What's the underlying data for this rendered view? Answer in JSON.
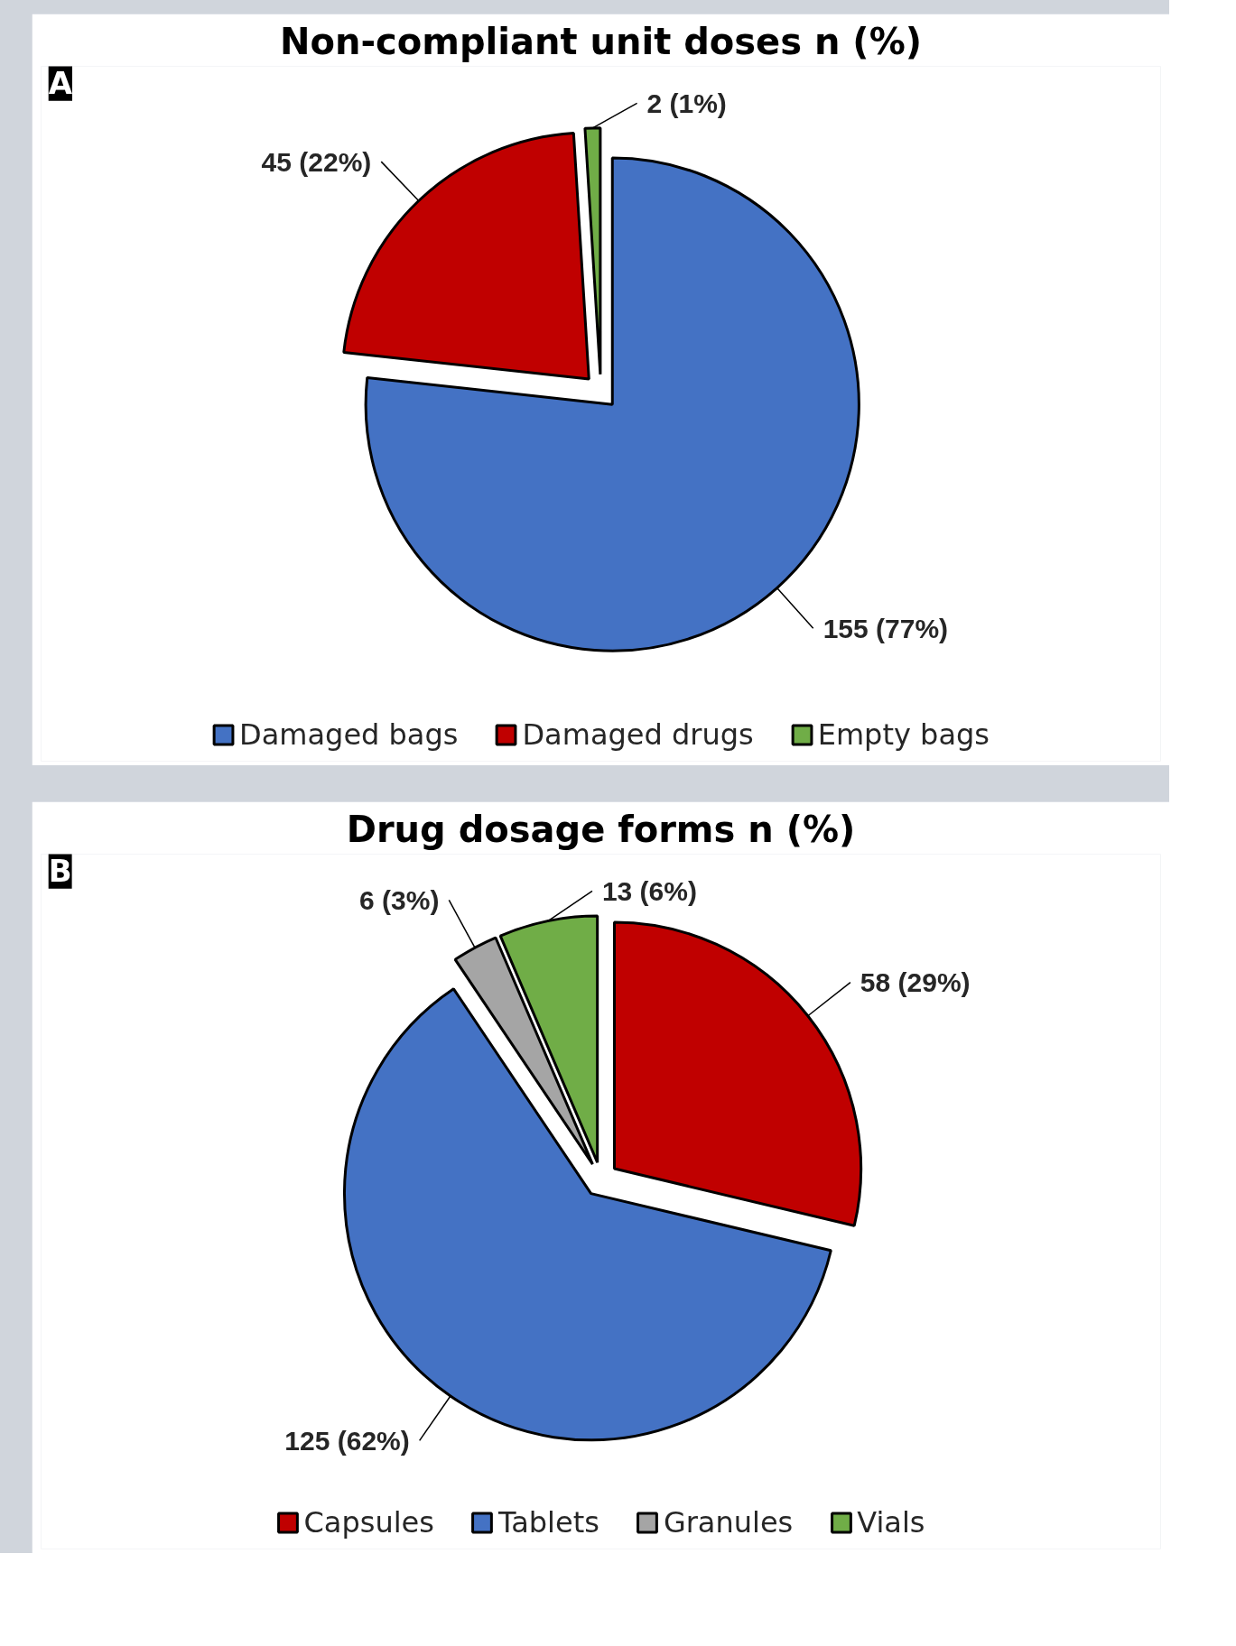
{
  "chart_data": [
    {
      "type": "pie",
      "title": "Non-compliant unit doses n (%)",
      "annotations": [
        "A"
      ],
      "categories": [
        "Damaged bags",
        "Damaged drugs",
        "Empty bags"
      ],
      "values": [
        155,
        45,
        2
      ],
      "colors": [
        "#4472c4",
        "#c00000",
        "#70ad47"
      ],
      "value_labels": [
        "155 (77%)",
        "45 (22%)",
        "2 (1%)"
      ],
      "legend": "bottom"
    },
    {
      "type": "pie",
      "title": "Drug dosage forms n (%)",
      "annotations": [
        "B"
      ],
      "categories": [
        "Capsules",
        "Tablets",
        "Granules",
        "Vials"
      ],
      "values": [
        58,
        125,
        6,
        13
      ],
      "colors": [
        "#c00000",
        "#4472c4",
        "#a5a5a5",
        "#70ad47"
      ],
      "value_labels": [
        "58 (29%)",
        "125 (62%)",
        "6 (3%)",
        "13 (6%)"
      ],
      "legend": "bottom"
    }
  ]
}
